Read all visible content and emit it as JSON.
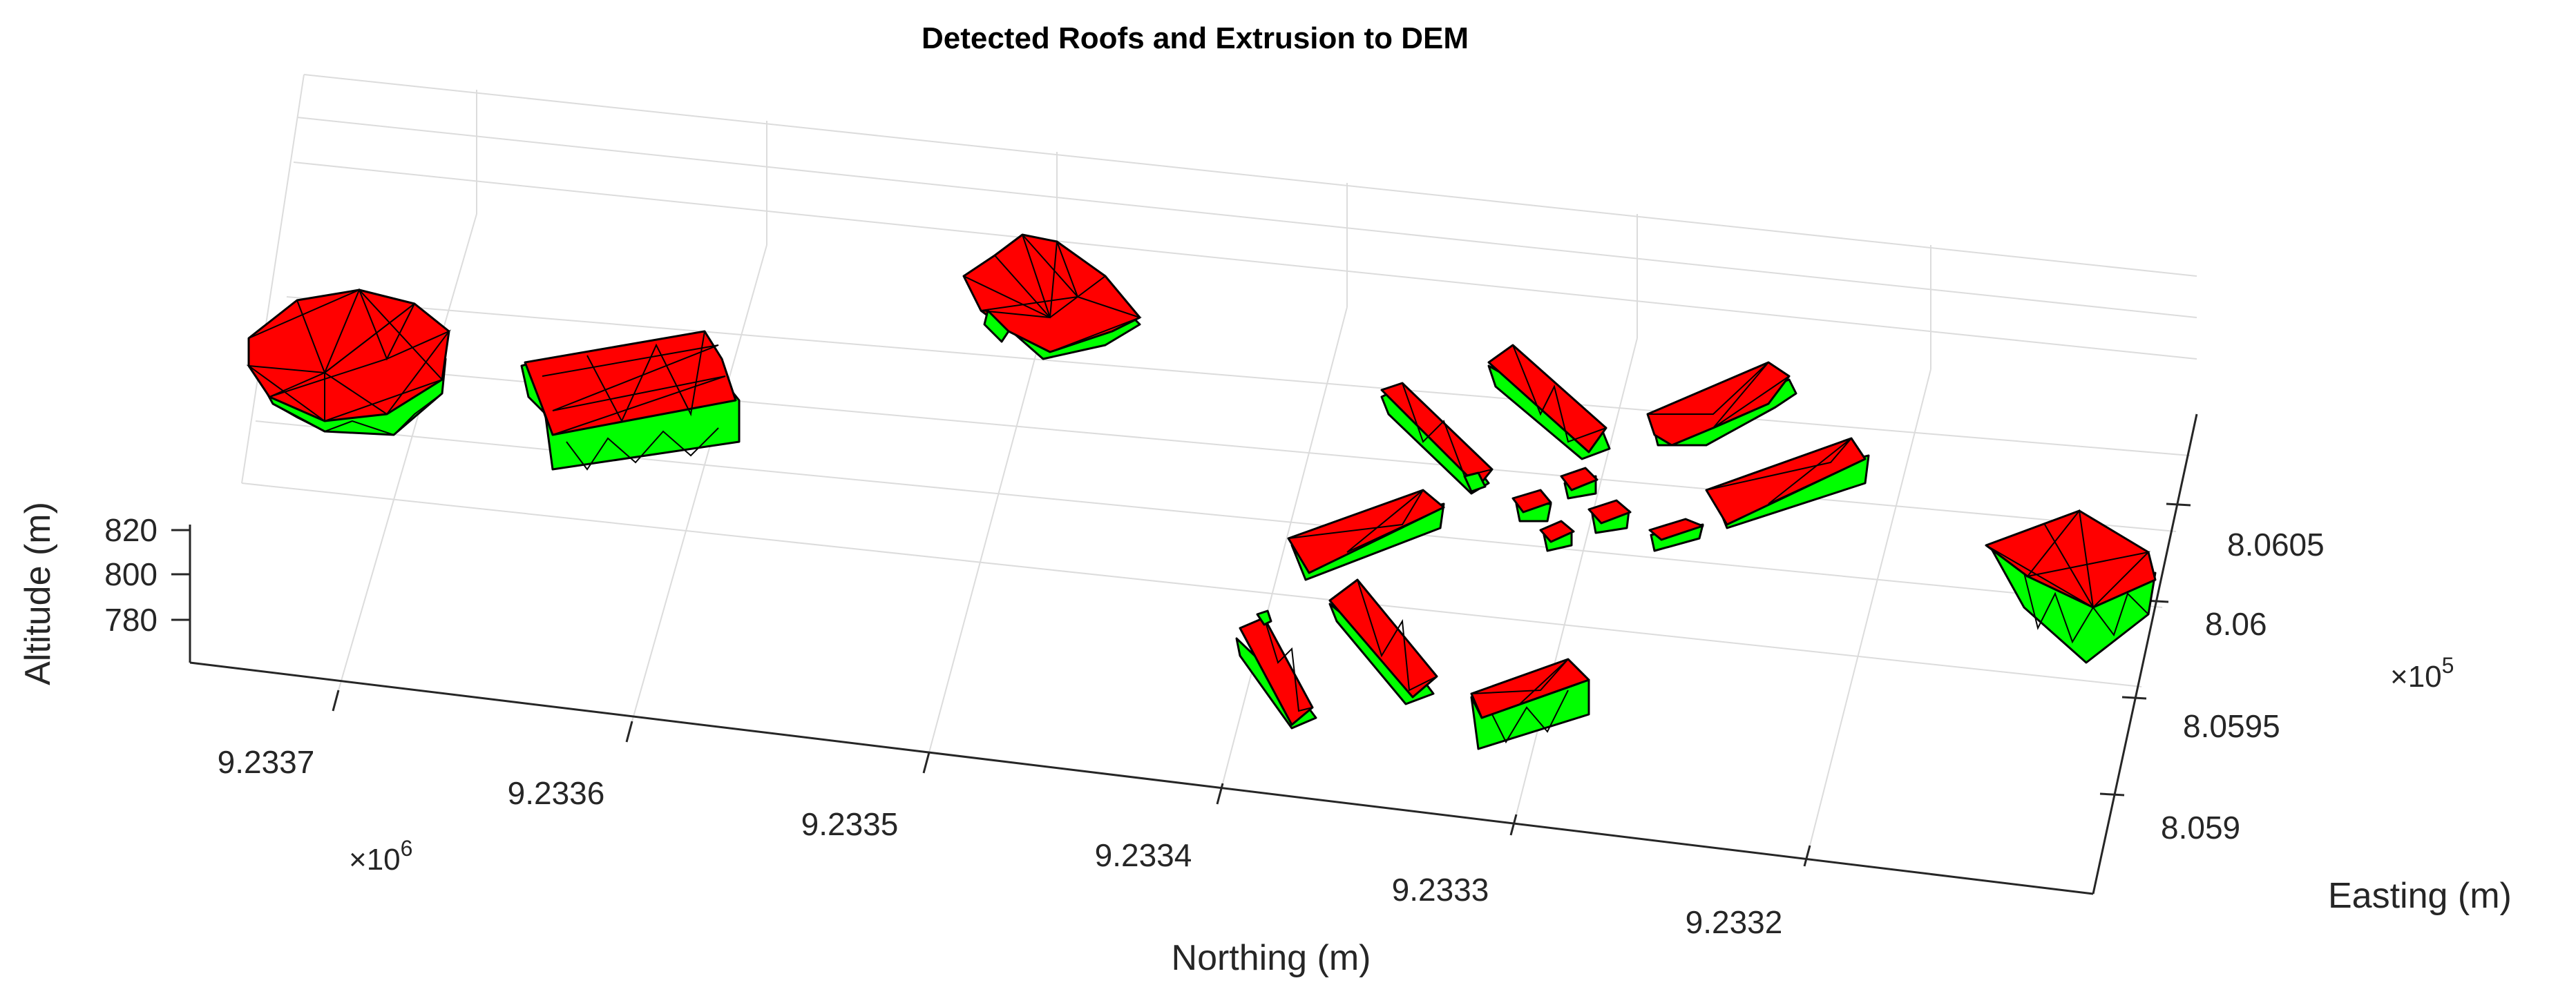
{
  "chart_data": {
    "type": "surface-3d",
    "title": "Detected Roofs and Extrusion to DEM",
    "xlabel": "Northing (m)",
    "ylabel": "Easting (m)",
    "zlabel": "Altitude (m)",
    "x_ticks": [
      "9.2337",
      "9.2336",
      "9.2335",
      "9.2334",
      "9.2333",
      "9.2332"
    ],
    "x_exponent_base": "×10",
    "x_exponent_power": "6",
    "y_ticks": [
      "8.059",
      "8.0595",
      "8.06",
      "8.0605"
    ],
    "y_exponent_base": "×10",
    "y_exponent_power": "5",
    "z_ticks": [
      "780",
      "800",
      "820"
    ],
    "grid": true,
    "roof_color": "#ff0000",
    "wall_color": "#00ff00",
    "edge_color": "#000000",
    "building_count": 19
  }
}
